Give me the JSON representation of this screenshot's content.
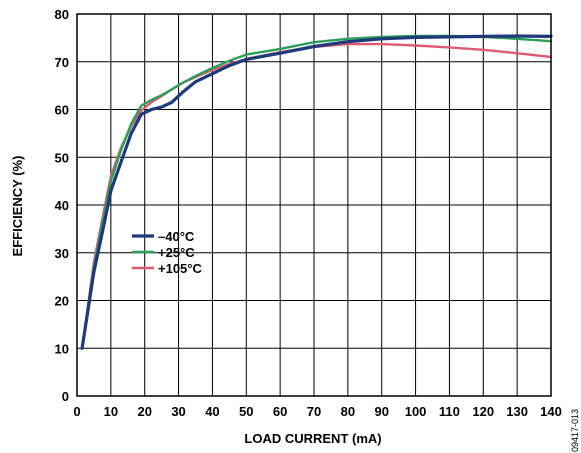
{
  "chart_data": {
    "type": "line",
    "xlabel": "LOAD CURRENT (mA)",
    "ylabel": "EFFICIENCY (%)",
    "xlim": [
      0,
      140
    ],
    "ylim": [
      0,
      80
    ],
    "xticks": [
      "0",
      "10",
      "20",
      "30",
      "40",
      "50",
      "60",
      "70",
      "80",
      "90",
      "100",
      "110",
      "120",
      "130",
      "140"
    ],
    "yticks": [
      "0",
      "10",
      "20",
      "30",
      "40",
      "50",
      "60",
      "70",
      "80"
    ],
    "grid": true,
    "legend_position": "middle-left",
    "figure_id": "09417-013",
    "series": [
      {
        "name": "–40°C",
        "color": "#1f3a7a",
        "x": [
          1.5,
          5,
          8,
          10,
          13,
          16,
          19,
          22,
          25,
          28,
          31,
          35,
          40,
          45,
          50,
          60,
          70,
          80,
          90,
          100,
          110,
          120,
          130,
          140
        ],
        "y": [
          10,
          26,
          36,
          43,
          49,
          55,
          59,
          60,
          60.5,
          61.5,
          63.5,
          65.8,
          67.5,
          69.2,
          70.5,
          71.8,
          73.2,
          74.2,
          74.8,
          75.1,
          75.2,
          75.3,
          75.4,
          75.3
        ]
      },
      {
        "name": "+25°C",
        "color": "#2b9e57",
        "x": [
          1.5,
          5,
          8,
          10,
          13,
          16,
          19,
          22,
          25,
          28,
          31,
          35,
          40,
          45,
          50,
          60,
          70,
          80,
          90,
          100,
          110,
          120,
          130,
          140
        ],
        "y": [
          10,
          27,
          38,
          45,
          51.5,
          57,
          60.8,
          62,
          63,
          64.2,
          65.5,
          67,
          68.7,
          70.2,
          71.5,
          72.7,
          74.1,
          74.8,
          75.2,
          75.4,
          75.4,
          75.2,
          74.8,
          74.3
        ]
      },
      {
        "name": "+105°C",
        "color": "#e05a72",
        "x": [
          1.5,
          5,
          8,
          10,
          13,
          16,
          19,
          22,
          25,
          28,
          31,
          35,
          40,
          45,
          50,
          60,
          70,
          80,
          90,
          100,
          110,
          120,
          130,
          140
        ],
        "y": [
          10,
          28,
          39,
          46,
          52,
          56.5,
          59.8,
          61.5,
          62.8,
          64.2,
          65.5,
          66.8,
          68.3,
          69.5,
          70.6,
          72,
          73.1,
          73.7,
          73.7,
          73.4,
          73,
          72.5,
          71.8,
          71
        ]
      }
    ]
  }
}
